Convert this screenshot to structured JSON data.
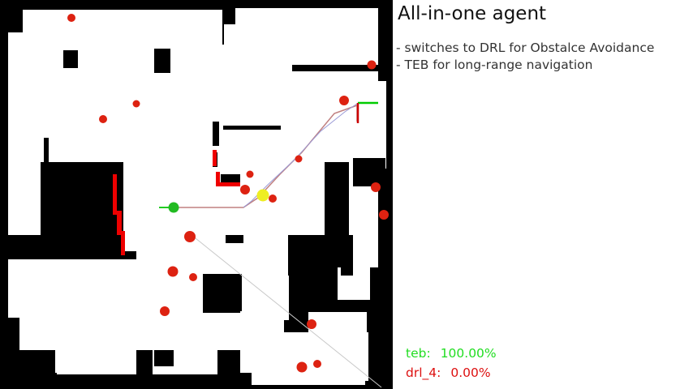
{
  "info": {
    "title": "All-in-one agent",
    "bullets": [
      "- switches to DRL for Obstalce Avoidance",
      "- TEB for long-range navigation"
    ]
  },
  "planner_stats": [
    {
      "label": "teb:",
      "value": "100.00%",
      "color": "#22dd22"
    },
    {
      "label": "drl_4:",
      "value": "0.00%",
      "color": "#dd1111"
    }
  ],
  "colors": {
    "obstacle": "#dd2211",
    "robot": "#22bb22",
    "goal_marker": "#eeee22",
    "free_space": "#ffffff",
    "unknown": "#000000",
    "path": "#c08080",
    "laser_hits": "#ee0000",
    "goal_axis_x": "#00cc00",
    "goal_axis_y": "#cc0000"
  },
  "icons": {
    "robot": "robot-marker-icon",
    "goal": "goal-pose-icon",
    "subgoal": "subgoal-marker-icon"
  }
}
